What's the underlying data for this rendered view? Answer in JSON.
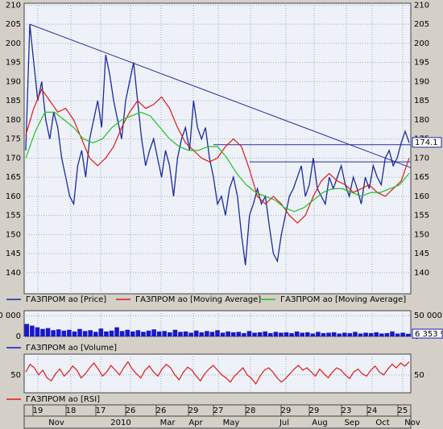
{
  "chart_data": [
    {
      "type": "line",
      "grid": true,
      "ylim": [
        134.5,
        210.5
      ],
      "yticks": [
        140,
        145,
        150,
        155,
        160,
        165,
        170,
        175,
        180,
        185,
        190,
        195,
        200,
        205,
        210
      ],
      "current_value": 174.1,
      "trend_lines": [
        {
          "color": "#2a2aa0",
          "values": [
            205,
            167.5
          ]
        },
        {
          "color": "#2a2aa0",
          "values": [
            173.5,
            173.5
          ]
        },
        {
          "color": "#2a2aa0",
          "values": [
            169,
            169
          ]
        }
      ],
      "series": [
        {
          "name": "ГАЗПРОМ ао [Price]",
          "color": "#1a2a9a",
          "values": [
            172,
            205,
            195,
            185,
            190,
            180,
            175,
            182,
            178,
            170,
            165,
            160,
            158,
            168,
            172,
            165,
            175,
            180,
            185,
            178,
            197,
            192,
            185,
            180,
            175,
            185,
            190,
            195,
            185,
            175,
            168,
            172,
            175,
            170,
            165,
            172,
            168,
            160,
            170,
            175,
            178,
            172,
            185,
            178,
            175,
            178,
            170,
            165,
            158,
            160,
            155,
            162,
            165,
            160,
            150,
            142,
            155,
            158,
            162,
            158,
            160,
            152,
            145,
            143,
            150,
            155,
            160,
            162,
            165,
            168,
            160,
            163,
            170,
            162,
            160,
            158,
            165,
            162,
            165,
            168,
            163,
            160,
            165,
            162,
            158,
            165,
            162,
            168,
            165,
            163,
            170,
            172,
            168,
            170,
            174,
            177,
            174
          ]
        },
        {
          "name": "ГАЗПРОМ ао [Moving Average]",
          "color": "#e01818",
          "values": [
            176,
            183,
            188,
            185,
            182,
            183,
            180,
            175,
            170,
            168,
            170,
            173,
            178,
            182,
            185,
            183,
            184,
            186,
            183,
            178,
            174,
            172,
            170,
            169,
            170,
            173,
            175,
            173,
            167,
            160,
            158,
            160,
            158,
            155,
            153,
            155,
            160,
            164,
            166,
            164,
            163,
            161,
            162,
            163,
            161,
            160,
            162,
            164,
            170
          ]
        },
        {
          "name": "ГАЗПРОМ ао [Moving Average]",
          "color": "#20c020",
          "values": [
            170,
            177,
            182,
            182,
            180,
            178,
            175,
            174,
            175,
            178,
            180,
            181,
            182,
            181,
            178,
            175,
            173,
            172,
            172,
            173,
            173,
            170,
            166,
            163,
            161,
            160,
            159,
            157,
            156,
            157,
            159,
            161,
            162,
            162,
            161,
            160,
            161,
            161,
            162,
            163,
            166
          ]
        }
      ]
    },
    {
      "type": "bar",
      "grid": true,
      "ylim": [
        0,
        62000
      ],
      "yticks": [
        0,
        {
          "value": 50000,
          "label": "50 000"
        }
      ],
      "last_label": "6 353 9",
      "series": [
        {
          "name": "ГАЗПРОМ ао [Volume]",
          "color": "#1818c8",
          "values": [
            30000,
            26000,
            22000,
            18000,
            20000,
            15000,
            17000,
            14000,
            16000,
            12000,
            18000,
            13000,
            15000,
            11000,
            19000,
            12000,
            14000,
            22000,
            13000,
            16000,
            12000,
            15000,
            11000,
            14000,
            17000,
            12000,
            13000,
            10000,
            16000,
            11000,
            12000,
            9000,
            14000,
            10000,
            13000,
            11000,
            15000,
            9000,
            12000,
            10000,
            11000,
            8000,
            13000,
            9000,
            10000,
            12000,
            8000,
            11000,
            9000,
            10000,
            8000,
            12000,
            9000,
            10000,
            7000,
            11000,
            8000,
            9000,
            10000,
            7000,
            9000,
            8000,
            11000,
            7000,
            9000,
            8000,
            10000,
            7000,
            8000,
            12000,
            7000,
            9000,
            6353
          ]
        }
      ]
    },
    {
      "type": "line",
      "grid": true,
      "ylim": [
        20,
        85
      ],
      "yticks": [
        50
      ],
      "series": [
        {
          "name": "ГАЗПРОМ ао [RSI]",
          "color": "#e01818",
          "values": [
            55,
            68,
            62,
            50,
            58,
            45,
            40,
            52,
            60,
            48,
            55,
            65,
            58,
            45,
            52,
            62,
            70,
            60,
            48,
            55,
            66,
            58,
            50,
            62,
            72,
            60,
            52,
            45,
            58,
            65,
            55,
            48,
            60,
            68,
            62,
            50,
            42,
            55,
            63,
            58,
            48,
            40,
            52,
            60,
            66,
            58,
            50,
            45,
            38,
            48,
            55,
            62,
            50,
            44,
            35,
            48,
            58,
            62,
            55,
            45,
            38,
            44,
            52,
            60,
            66,
            58,
            62,
            55,
            48,
            60,
            52,
            45,
            55,
            62,
            58,
            50,
            44,
            55,
            60,
            52,
            48,
            58,
            65,
            55,
            50,
            60,
            68,
            62,
            70,
            65,
            72
          ]
        }
      ]
    }
  ],
  "x_axis": {
    "days": [
      "19",
      "18",
      "17",
      "26",
      "26",
      "29",
      "27",
      "28",
      "29",
      "29",
      "23",
      "24",
      "25"
    ],
    "months": [
      "Nov",
      "2010",
      "Mar",
      "Apr",
      "May",
      "Jul",
      "Aug",
      "Sep",
      "Oct",
      "Nov"
    ]
  }
}
